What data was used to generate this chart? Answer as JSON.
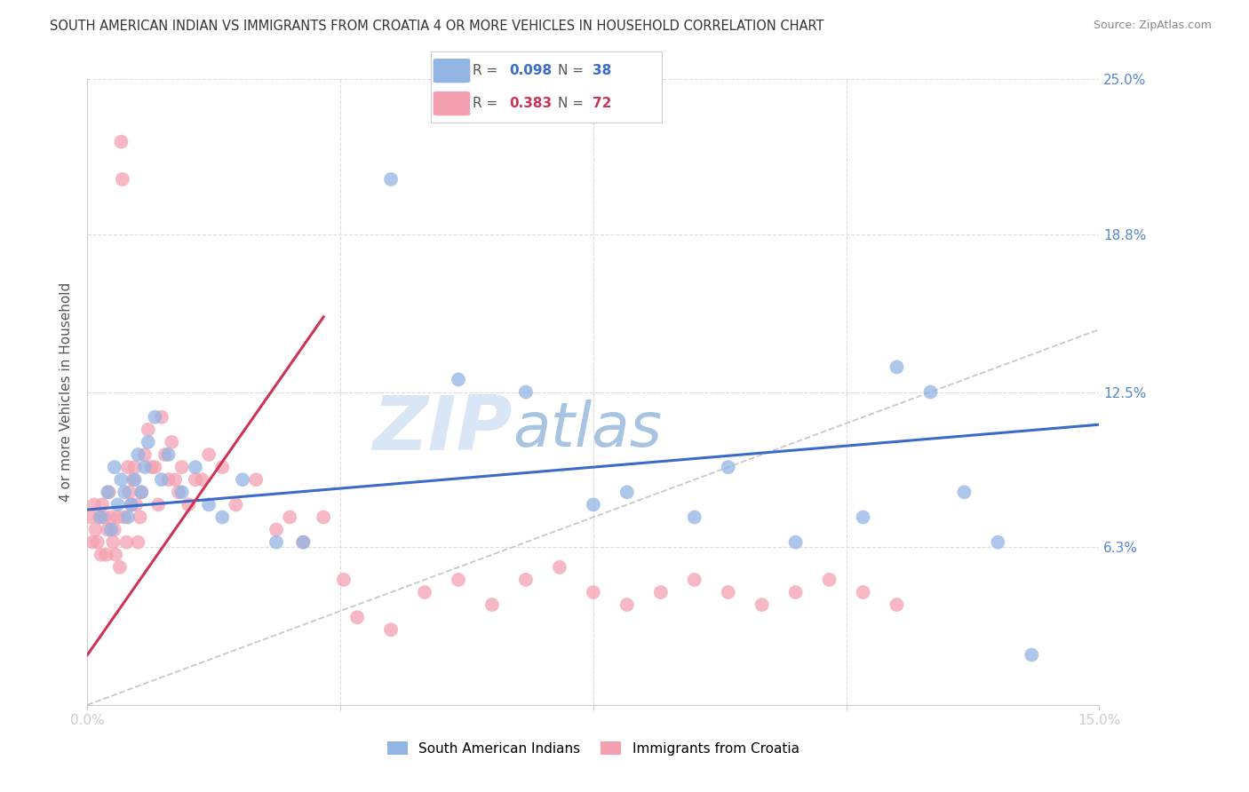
{
  "title": "SOUTH AMERICAN INDIAN VS IMMIGRANTS FROM CROATIA 4 OR MORE VEHICLES IN HOUSEHOLD CORRELATION CHART",
  "source": "Source: ZipAtlas.com",
  "ylabel": "4 or more Vehicles in Household",
  "xmin": 0.0,
  "xmax": 15.0,
  "ymin": 0.0,
  "ymax": 25.0,
  "blue_label": "South American Indians",
  "pink_label": "Immigrants from Croatia",
  "blue_R": "0.098",
  "blue_N": "38",
  "pink_R": "0.383",
  "pink_N": "72",
  "blue_color": "#92B4E3",
  "pink_color": "#F4A0B0",
  "blue_line_color": "#3A6BC8",
  "pink_line_color": "#CC3355",
  "watermark_zip": "ZIP",
  "watermark_atlas": "atlas",
  "watermark_color": "#D0DEF0",
  "blue_scatter_x": [
    0.2,
    0.3,
    0.35,
    0.4,
    0.45,
    0.5,
    0.55,
    0.6,
    0.65,
    0.7,
    0.75,
    0.8,
    0.85,
    0.9,
    1.0,
    1.1,
    1.2,
    1.4,
    1.6,
    1.8,
    2.0,
    2.3,
    2.8,
    3.2,
    4.5,
    5.5,
    6.5,
    7.5,
    8.0,
    9.0,
    9.5,
    10.5,
    11.5,
    12.0,
    12.5,
    13.0,
    13.5,
    14.0
  ],
  "blue_scatter_y": [
    7.5,
    8.5,
    7.0,
    9.5,
    8.0,
    9.0,
    8.5,
    7.5,
    8.0,
    9.0,
    10.0,
    8.5,
    9.5,
    10.5,
    11.5,
    9.0,
    10.0,
    8.5,
    9.5,
    8.0,
    7.5,
    9.0,
    6.5,
    6.5,
    21.0,
    13.0,
    12.5,
    8.0,
    8.5,
    7.5,
    9.5,
    6.5,
    7.5,
    13.5,
    12.5,
    8.5,
    6.5,
    2.0
  ],
  "pink_scatter_x": [
    0.05,
    0.08,
    0.1,
    0.12,
    0.15,
    0.18,
    0.2,
    0.22,
    0.25,
    0.28,
    0.3,
    0.32,
    0.35,
    0.38,
    0.4,
    0.42,
    0.45,
    0.48,
    0.5,
    0.52,
    0.55,
    0.58,
    0.6,
    0.62,
    0.65,
    0.68,
    0.7,
    0.72,
    0.75,
    0.78,
    0.8,
    0.85,
    0.9,
    0.95,
    1.0,
    1.05,
    1.1,
    1.15,
    1.2,
    1.25,
    1.3,
    1.35,
    1.4,
    1.5,
    1.6,
    1.7,
    1.8,
    2.0,
    2.2,
    2.5,
    2.8,
    3.0,
    3.2,
    3.5,
    3.8,
    4.0,
    4.5,
    5.0,
    5.5,
    6.0,
    6.5,
    7.0,
    7.5,
    8.0,
    8.5,
    9.0,
    9.5,
    10.0,
    10.5,
    11.0,
    11.5,
    12.0
  ],
  "pink_scatter_y": [
    7.5,
    6.5,
    8.0,
    7.0,
    6.5,
    7.5,
    6.0,
    8.0,
    7.5,
    6.0,
    7.0,
    8.5,
    7.5,
    6.5,
    7.0,
    6.0,
    7.5,
    5.5,
    22.5,
    21.0,
    7.5,
    6.5,
    9.5,
    8.5,
    8.0,
    9.0,
    9.5,
    8.0,
    6.5,
    7.5,
    8.5,
    10.0,
    11.0,
    9.5,
    9.5,
    8.0,
    11.5,
    10.0,
    9.0,
    10.5,
    9.0,
    8.5,
    9.5,
    8.0,
    9.0,
    9.0,
    10.0,
    9.5,
    8.0,
    9.0,
    7.0,
    7.5,
    6.5,
    7.5,
    5.0,
    3.5,
    3.0,
    4.5,
    5.0,
    4.0,
    5.0,
    5.5,
    4.5,
    4.0,
    4.5,
    5.0,
    4.5,
    4.0,
    4.5,
    5.0,
    4.5,
    4.0
  ],
  "blue_line_x0": 0.0,
  "blue_line_x1": 15.0,
  "blue_line_y0": 7.8,
  "blue_line_y1": 11.2,
  "pink_line_x0": 0.0,
  "pink_line_x1": 3.5,
  "pink_line_y0": 2.0,
  "pink_line_y1": 15.5
}
